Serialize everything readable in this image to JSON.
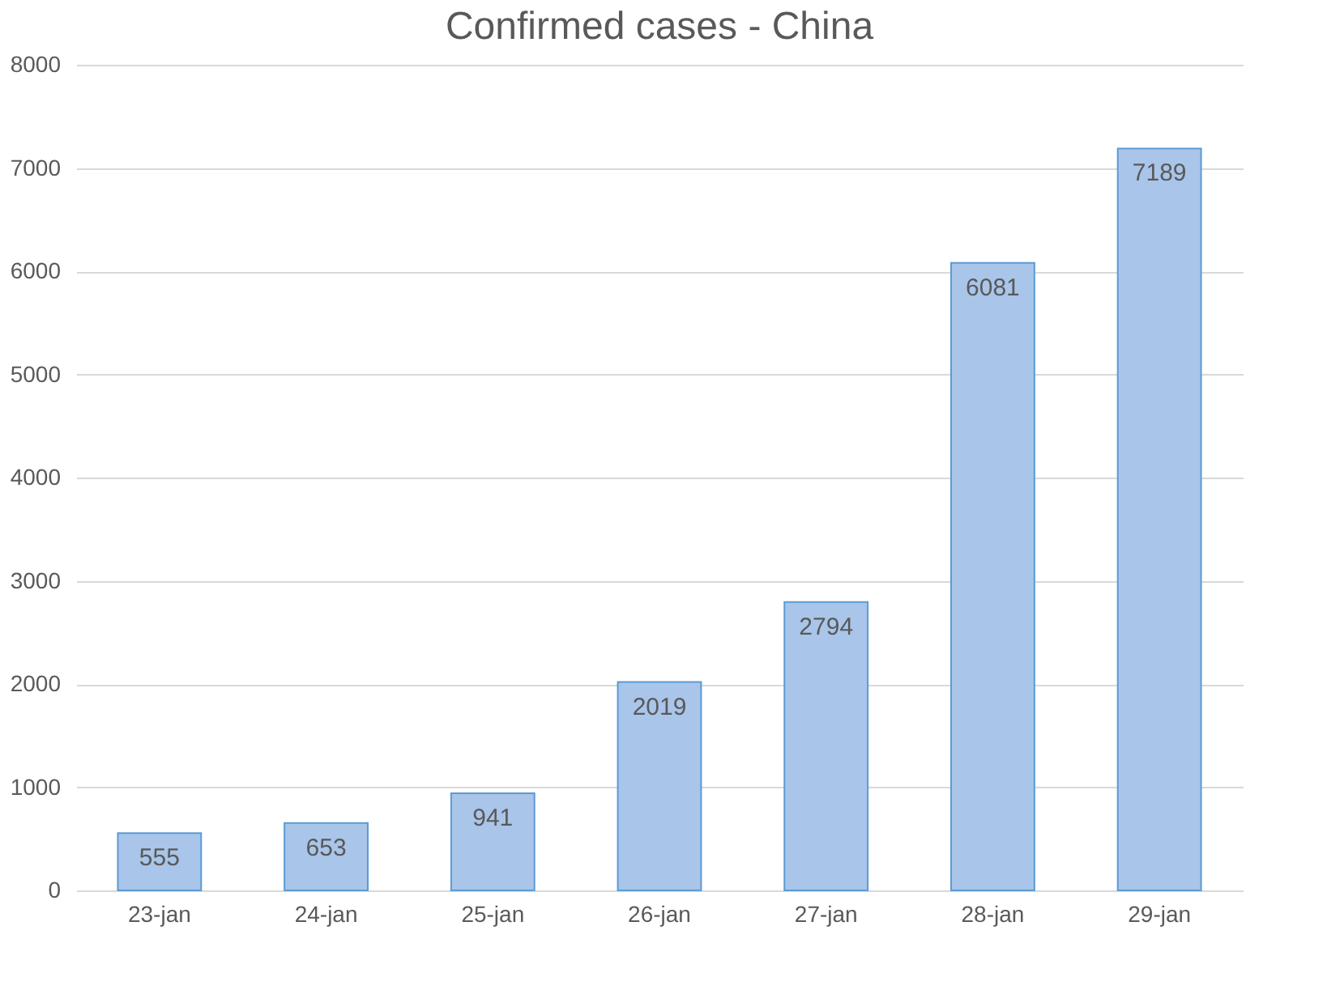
{
  "chart_data": {
    "type": "bar",
    "title": "Confirmed cases - China",
    "categories": [
      "23-jan",
      "24-jan",
      "25-jan",
      "26-jan",
      "27-jan",
      "28-jan",
      "29-jan"
    ],
    "values": [
      555,
      653,
      941,
      2019,
      2794,
      6081,
      7189
    ],
    "color": "#a9c5e9",
    "ylim": [
      0,
      8000
    ],
    "yticks": [
      0,
      1000,
      2000,
      3000,
      4000,
      5000,
      6000,
      7000,
      8000
    ],
    "grid": "y",
    "data_labels": true
  }
}
